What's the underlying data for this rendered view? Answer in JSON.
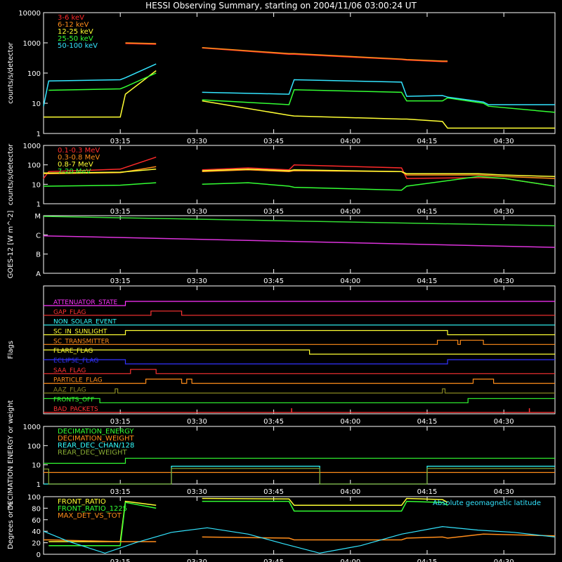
{
  "title": "HESSI Observing Summary, starting on 2004/11/06 03:00:24 UT",
  "time_ticks": [
    "03:15",
    "03:30",
    "03:45",
    "04:00",
    "04:15",
    "04:30"
  ],
  "chart_data": [
    {
      "id": "lowE",
      "type": "line",
      "ylabel": "counts/s/detector",
      "yscale": "log",
      "ylim": [
        1,
        10000
      ],
      "ytick_labels": [
        "1",
        "10",
        "100",
        "1000",
        "10000"
      ],
      "legend": [
        {
          "name": "3-6 keV",
          "color": "#ff2a2a"
        },
        {
          "name": "6-12 keV",
          "color": "#ff8c1a"
        },
        {
          "name": "12-25 keV",
          "color": "#ffff33"
        },
        {
          "name": "25-50 keV",
          "color": "#33ff33"
        },
        {
          "name": "50-100 keV",
          "color": "#33e5ff"
        }
      ],
      "x_minutes": [
        0,
        1,
        15,
        16,
        22,
        23,
        30,
        31,
        48,
        49,
        70,
        71,
        78,
        79,
        86,
        87,
        100
      ],
      "series": [
        {
          "name": "3-6 keV",
          "color": "#ff2a2a",
          "values": [
            null,
            null,
            null,
            950,
            900,
            null,
            null,
            680,
            420,
            420,
            280,
            270,
            240,
            240,
            null,
            null,
            null
          ]
        },
        {
          "name": "6-12 keV",
          "color": "#ff8c1a",
          "values": [
            null,
            null,
            null,
            1000,
            950,
            null,
            null,
            700,
            440,
            440,
            290,
            280,
            250,
            250,
            null,
            null,
            null
          ]
        },
        {
          "name": "12-25 keV",
          "color": "#ffff33",
          "values": [
            3.5,
            3.5,
            3.5,
            20,
            120,
            null,
            null,
            12,
            4,
            3.8,
            3,
            3,
            2.5,
            1.5,
            1.5,
            1.5,
            1.5
          ]
        },
        {
          "name": "25-50 keV",
          "color": "#33ff33",
          "values": [
            null,
            27,
            30,
            35,
            100,
            null,
            null,
            13,
            9,
            28,
            23,
            12,
            12,
            15,
            10,
            8,
            5
          ]
        },
        {
          "name": "50-100 keV",
          "color": "#33e5ff",
          "values": [
            8,
            55,
            60,
            70,
            200,
            null,
            null,
            23,
            20,
            60,
            50,
            17,
            18,
            16,
            11,
            9,
            9
          ]
        }
      ]
    },
    {
      "id": "highE",
      "type": "line",
      "ylabel": "counts/s/detector",
      "yscale": "log",
      "ylim": [
        1,
        1000
      ],
      "ytick_labels": [
        "1",
        "10",
        "100",
        "1000"
      ],
      "legend": [
        {
          "name": "0.1-0.3 MeV",
          "color": "#ff2a2a"
        },
        {
          "name": "0.3-0.8 MeV",
          "color": "#ff8c1a"
        },
        {
          "name": "0.8-7 MeV",
          "color": "#ffff33"
        },
        {
          "name": "7-20 MeV",
          "color": "#33ff33"
        }
      ],
      "x_minutes": [
        0,
        1,
        15,
        22,
        23,
        30,
        31,
        40,
        48,
        49,
        70,
        71,
        85,
        90,
        100
      ],
      "series": [
        {
          "name": "0.1-0.3 MeV",
          "color": "#ff2a2a",
          "values": [
            20,
            45,
            60,
            250,
            null,
            null,
            55,
            70,
            55,
            100,
            70,
            20,
            22,
            20,
            8
          ]
        },
        {
          "name": "0.3-0.8 MeV",
          "color": "#ff8c1a",
          "values": [
            35,
            35,
            40,
            80,
            null,
            null,
            45,
            55,
            45,
            50,
            45,
            30,
            30,
            25,
            20
          ]
        },
        {
          "name": "0.8-7 MeV",
          "color": "#ffff33",
          "values": [
            38,
            38,
            42,
            60,
            null,
            null,
            50,
            60,
            50,
            55,
            45,
            35,
            35,
            30,
            25
          ]
        },
        {
          "name": "7-20 MeV",
          "color": "#33ff33",
          "values": [
            8,
            8,
            9,
            12,
            null,
            null,
            10,
            12,
            8,
            7,
            5,
            8,
            25,
            20,
            8
          ]
        }
      ]
    },
    {
      "id": "goes",
      "type": "line",
      "ylabel": "GOES-12 [W m^-2]",
      "ylim": [
        0,
        4
      ],
      "ytick_labels": [
        "A",
        "B",
        "C",
        "M"
      ],
      "x_minutes": [
        0,
        100
      ],
      "series": [
        {
          "name": "long",
          "color": "#33dd33",
          "values": [
            3.95,
            3.3
          ]
        },
        {
          "name": "short",
          "color": "#dd33dd",
          "values": [
            2.6,
            1.8
          ]
        }
      ]
    },
    {
      "id": "flags",
      "type": "line",
      "ylabel": "Flags",
      "rows": [
        {
          "name": "ATTENUATOR_STATE",
          "color": "#ff33ff",
          "segs": [
            [
              0,
              16,
              0
            ],
            [
              16,
              100,
              1
            ]
          ]
        },
        {
          "name": "GAP_FLAG",
          "color": "#ff3333",
          "segs": [
            [
              0,
              21,
              0
            ],
            [
              21,
              27,
              1
            ],
            [
              27,
              100,
              0
            ]
          ]
        },
        {
          "name": "NON_SOLAR_EVENT",
          "color": "#33ffff",
          "segs": [
            [
              0,
              100,
              0
            ]
          ]
        },
        {
          "name": "SC_IN_SUNLIGHT",
          "color": "#ffff33",
          "segs": [
            [
              0,
              16,
              0
            ],
            [
              16,
              79,
              1
            ],
            [
              79,
              100,
              0
            ]
          ]
        },
        {
          "name": "SC_TRANSMITTER",
          "color": "#ff8c1a",
          "segs": [
            [
              0,
              77,
              0
            ],
            [
              77,
              81,
              1
            ],
            [
              81,
              81.5,
              0
            ],
            [
              81.5,
              86,
              1
            ],
            [
              86,
              100,
              0
            ]
          ]
        },
        {
          "name": "FLARE_FLAG",
          "color": "#ffff33",
          "segs": [
            [
              0,
              16,
              1
            ],
            [
              16,
              52,
              1
            ],
            [
              52,
              100,
              0
            ]
          ]
        },
        {
          "name": "ECLIPSE_FLAG",
          "color": "#3333ff",
          "segs": [
            [
              0,
              16,
              1
            ],
            [
              16,
              79,
              0
            ],
            [
              79,
              100,
              1
            ]
          ]
        },
        {
          "name": "SAA_FLAG",
          "color": "#ff3333",
          "segs": [
            [
              0,
              17,
              0
            ],
            [
              17,
              22,
              1
            ],
            [
              22,
              100,
              0
            ]
          ]
        },
        {
          "name": "PARTICLE_FLAG",
          "color": "#ff8c1a",
          "segs": [
            [
              0,
              20,
              0
            ],
            [
              20,
              27,
              1
            ],
            [
              27,
              28,
              0
            ],
            [
              28,
              29,
              1
            ],
            [
              29,
              84,
              0
            ],
            [
              84,
              84.5,
              1
            ],
            [
              84.5,
              88,
              1
            ],
            [
              88,
              100,
              0
            ]
          ]
        },
        {
          "name": "AAZ_FLAG",
          "color": "#888822",
          "segs": [
            [
              0,
              14,
              0
            ],
            [
              14,
              14.5,
              1
            ],
            [
              14.5,
              78,
              0
            ],
            [
              78,
              78.5,
              1
            ],
            [
              78.5,
              100,
              0
            ]
          ]
        },
        {
          "name": "FRONTS_OFF",
          "color": "#33ff33",
          "segs": [
            [
              0,
              11,
              1
            ],
            [
              11,
              83,
              0
            ],
            [
              83,
              100,
              1
            ]
          ]
        },
        {
          "name": "BAD_PACKETS",
          "color": "#ff3333",
          "segs": [
            [
              0,
              100,
              0
            ]
          ],
          "spikes": [
            48.5,
            95
          ]
        }
      ]
    },
    {
      "id": "decim",
      "type": "line",
      "ylabel": "DECIMATION ENERGY or weight",
      "yscale": "log",
      "ylim": [
        1,
        1000
      ],
      "ytick_labels": [
        "1",
        "10",
        "100",
        "1000"
      ],
      "legend": [
        {
          "name": "DECIMATION_ENERGY",
          "color": "#33ff33"
        },
        {
          "name": "DECIMATION_WEIGHT",
          "color": "#ff8c1a"
        },
        {
          "name": "REAR_DEC_CHAN/128",
          "color": "#33ffff"
        },
        {
          "name": "REAR_DEC_WEIGHT",
          "color": "#88aa33"
        }
      ],
      "steps": [
        {
          "name": "DECIMATION_ENERGY",
          "color": "#33ff33",
          "segs": [
            [
              0,
              16,
              12
            ],
            [
              16,
              100,
              22
            ]
          ]
        },
        {
          "name": "DECIMATION_WEIGHT",
          "color": "#ff8c1a",
          "segs": [
            [
              0,
              100,
              4
            ]
          ]
        },
        {
          "name": "REAR_DEC_CHAN/128",
          "color": "#33ffff",
          "segs": [
            [
              0,
              1,
              1
            ],
            [
              1,
              25,
              1
            ],
            [
              25,
              54,
              8.5
            ],
            [
              54,
              75,
              1
            ],
            [
              75,
              100,
              8.5
            ]
          ]
        },
        {
          "name": "REAR_DEC_WEIGHT",
          "color": "#88aa33",
          "segs": [
            [
              0,
              1,
              6
            ],
            [
              1,
              25,
              1
            ],
            [
              25,
              54,
              6.5
            ],
            [
              54,
              75,
              1
            ],
            [
              75,
              100,
              6.5
            ]
          ]
        }
      ]
    },
    {
      "id": "ratio",
      "type": "line",
      "ylabel": "Degrees or %",
      "ylim": [
        0,
        100
      ],
      "ytick_labels": [
        "0",
        "20",
        "40",
        "60",
        "80",
        "100"
      ],
      "legend": [
        {
          "name": "FRONT_RATIO",
          "color": "#ffff33"
        },
        {
          "name": "FRONT_RATIO_1225",
          "color": "#33ff33"
        },
        {
          "name": "MAX_DET_VS_TOT",
          "color": "#ff8c1a"
        }
      ],
      "label_right": "Absolute geomagnetic latitude",
      "label_right_color": "#33e5ff",
      "x_minutes": [
        0,
        1,
        15,
        16,
        22,
        23,
        30,
        31,
        48,
        49,
        70,
        71,
        78,
        79,
        86,
        100
      ],
      "series": [
        {
          "name": "FRONT_RATIO",
          "color": "#ffff33",
          "values": [
            null,
            22,
            22,
            92,
            85,
            null,
            null,
            97,
            96,
            85,
            85,
            97,
            95,
            90,
            null,
            null
          ]
        },
        {
          "name": "FRONT_RATIO_1225",
          "color": "#33ff33",
          "values": [
            null,
            15,
            15,
            90,
            80,
            null,
            null,
            92,
            92,
            75,
            75,
            92,
            90,
            85,
            null,
            null
          ]
        },
        {
          "name": "MAX_DET_VS_TOT",
          "color": "#ff8c1a",
          "values": [
            25,
            25,
            22,
            22,
            22,
            null,
            null,
            30,
            28,
            25,
            25,
            28,
            30,
            28,
            35,
            32
          ]
        }
      ],
      "latitude": {
        "color": "#33e5ff",
        "x_minutes": [
          0,
          5,
          12,
          18,
          25,
          32,
          40,
          47,
          54,
          62,
          70,
          78,
          85,
          92,
          100
        ],
        "values": [
          40,
          22,
          2,
          20,
          38,
          46,
          35,
          18,
          2,
          15,
          35,
          48,
          42,
          38,
          30
        ]
      }
    }
  ]
}
